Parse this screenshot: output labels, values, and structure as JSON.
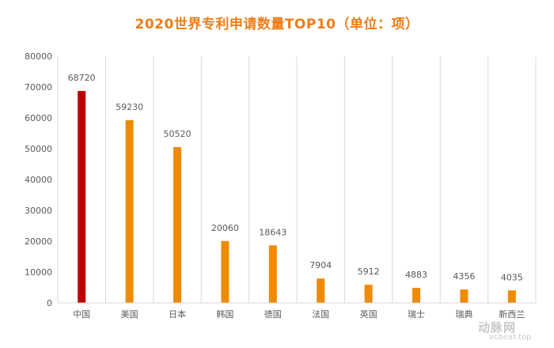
{
  "chart_data": {
    "type": "bar",
    "title": "2020世界专利申请数量TOP10（单位：项）",
    "categories": [
      "中国",
      "美国",
      "日本",
      "韩国",
      "德国",
      "法国",
      "英国",
      "瑞士",
      "瑞典",
      "新西兰"
    ],
    "values": [
      68720,
      59230,
      50520,
      20060,
      18643,
      7904,
      5912,
      4883,
      4356,
      4035
    ],
    "data_labels": [
      "68720",
      "59230",
      "50520",
      "20060",
      "18643",
      "7904",
      "5912",
      "4883",
      "4356",
      "4035"
    ],
    "ylim": [
      0,
      80000
    ],
    "yticks": [
      0,
      10000,
      20000,
      30000,
      40000,
      50000,
      60000,
      70000,
      80000
    ],
    "ytick_labels": [
      "0",
      "10000",
      "20000",
      "30000",
      "40000",
      "50000",
      "60000",
      "70000",
      "80000"
    ],
    "xlabel": "",
    "ylabel": "",
    "grid": "vertical category separators",
    "legend": "none",
    "colors": {
      "highlight": "#c00000",
      "bar": "#f08a00",
      "title": "#ed7d1a",
      "grid": "#d9d9d9",
      "tick_text": "#595959",
      "label_text": "#595959"
    }
  },
  "watermark": {
    "cn": "动脉网",
    "url": "vcbeat.top"
  }
}
